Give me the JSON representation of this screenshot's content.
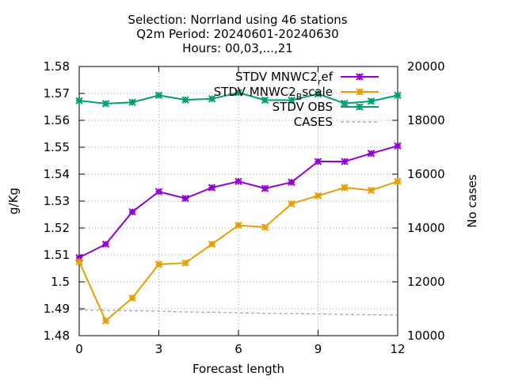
{
  "chart_data": {
    "type": "line",
    "title_lines": [
      "Selection: Norrland using    46 stations",
      "Q2m   Period: 20240601-20240630",
      "Hours: 00,03,...,21"
    ],
    "xlabel": "Forecast length",
    "ylabel": "g/Kg",
    "y2label": "No cases",
    "xlim": [
      0,
      12
    ],
    "ylim": [
      1.48,
      1.58
    ],
    "y2lim": [
      10000,
      20000
    ],
    "xticks": [
      "0",
      "3",
      "6",
      "9",
      "12"
    ],
    "yticks": [
      "1.48",
      "1.49",
      "1.5",
      "1.51",
      "1.52",
      "1.53",
      "1.54",
      "1.55",
      "1.56",
      "1.57",
      "1.58"
    ],
    "y2ticks": [
      "10000",
      "12000",
      "14000",
      "16000",
      "18000",
      "20000"
    ],
    "grid": true,
    "legend_position": "top-right",
    "x": [
      0,
      1,
      2,
      3,
      4,
      5,
      6,
      7,
      8,
      9,
      10,
      11,
      12
    ],
    "series": [
      {
        "name": "STDV MNWC2_ref",
        "legend_base": "STDV MNWC2",
        "legend_sub": "r",
        "legend_tail": "ef",
        "color": "#9400d3",
        "axis": "y",
        "marker": "star",
        "values": [
          1.509,
          1.514,
          1.526,
          1.5335,
          1.531,
          1.535,
          1.5373,
          1.5347,
          1.537,
          1.5447,
          1.5447,
          1.5477,
          1.5505
        ]
      },
      {
        "name": "STDV MNWC2_Bscale",
        "legend_base": "STDV MNWC2",
        "legend_sub": "B",
        "legend_tail": "scale",
        "color": "#e69f00",
        "axis": "y",
        "marker": "star",
        "values": [
          1.5075,
          1.4855,
          1.494,
          1.5065,
          1.507,
          1.514,
          1.521,
          1.5203,
          1.529,
          1.532,
          1.535,
          1.534,
          1.5373
        ]
      },
      {
        "name": "STDV OBS",
        "legend_base": "STDV OBS",
        "legend_sub": "",
        "legend_tail": "",
        "color": "#009e73",
        "axis": "y",
        "marker": "star",
        "values": [
          1.5673,
          1.5662,
          1.5667,
          1.5693,
          1.5676,
          1.568,
          1.5703,
          1.5675,
          1.5675,
          1.5698,
          1.5663,
          1.5671,
          1.5693
        ]
      },
      {
        "name": "CASES",
        "legend_base": "CASES",
        "legend_sub": "",
        "legend_tail": "",
        "color": "#a0a0a0",
        "axis": "y2",
        "marker": "none",
        "dashed": true,
        "values": [
          10950,
          10940,
          10930,
          10910,
          10880,
          10870,
          10850,
          10830,
          10820,
          10810,
          10790,
          10780,
          10760
        ]
      }
    ]
  }
}
